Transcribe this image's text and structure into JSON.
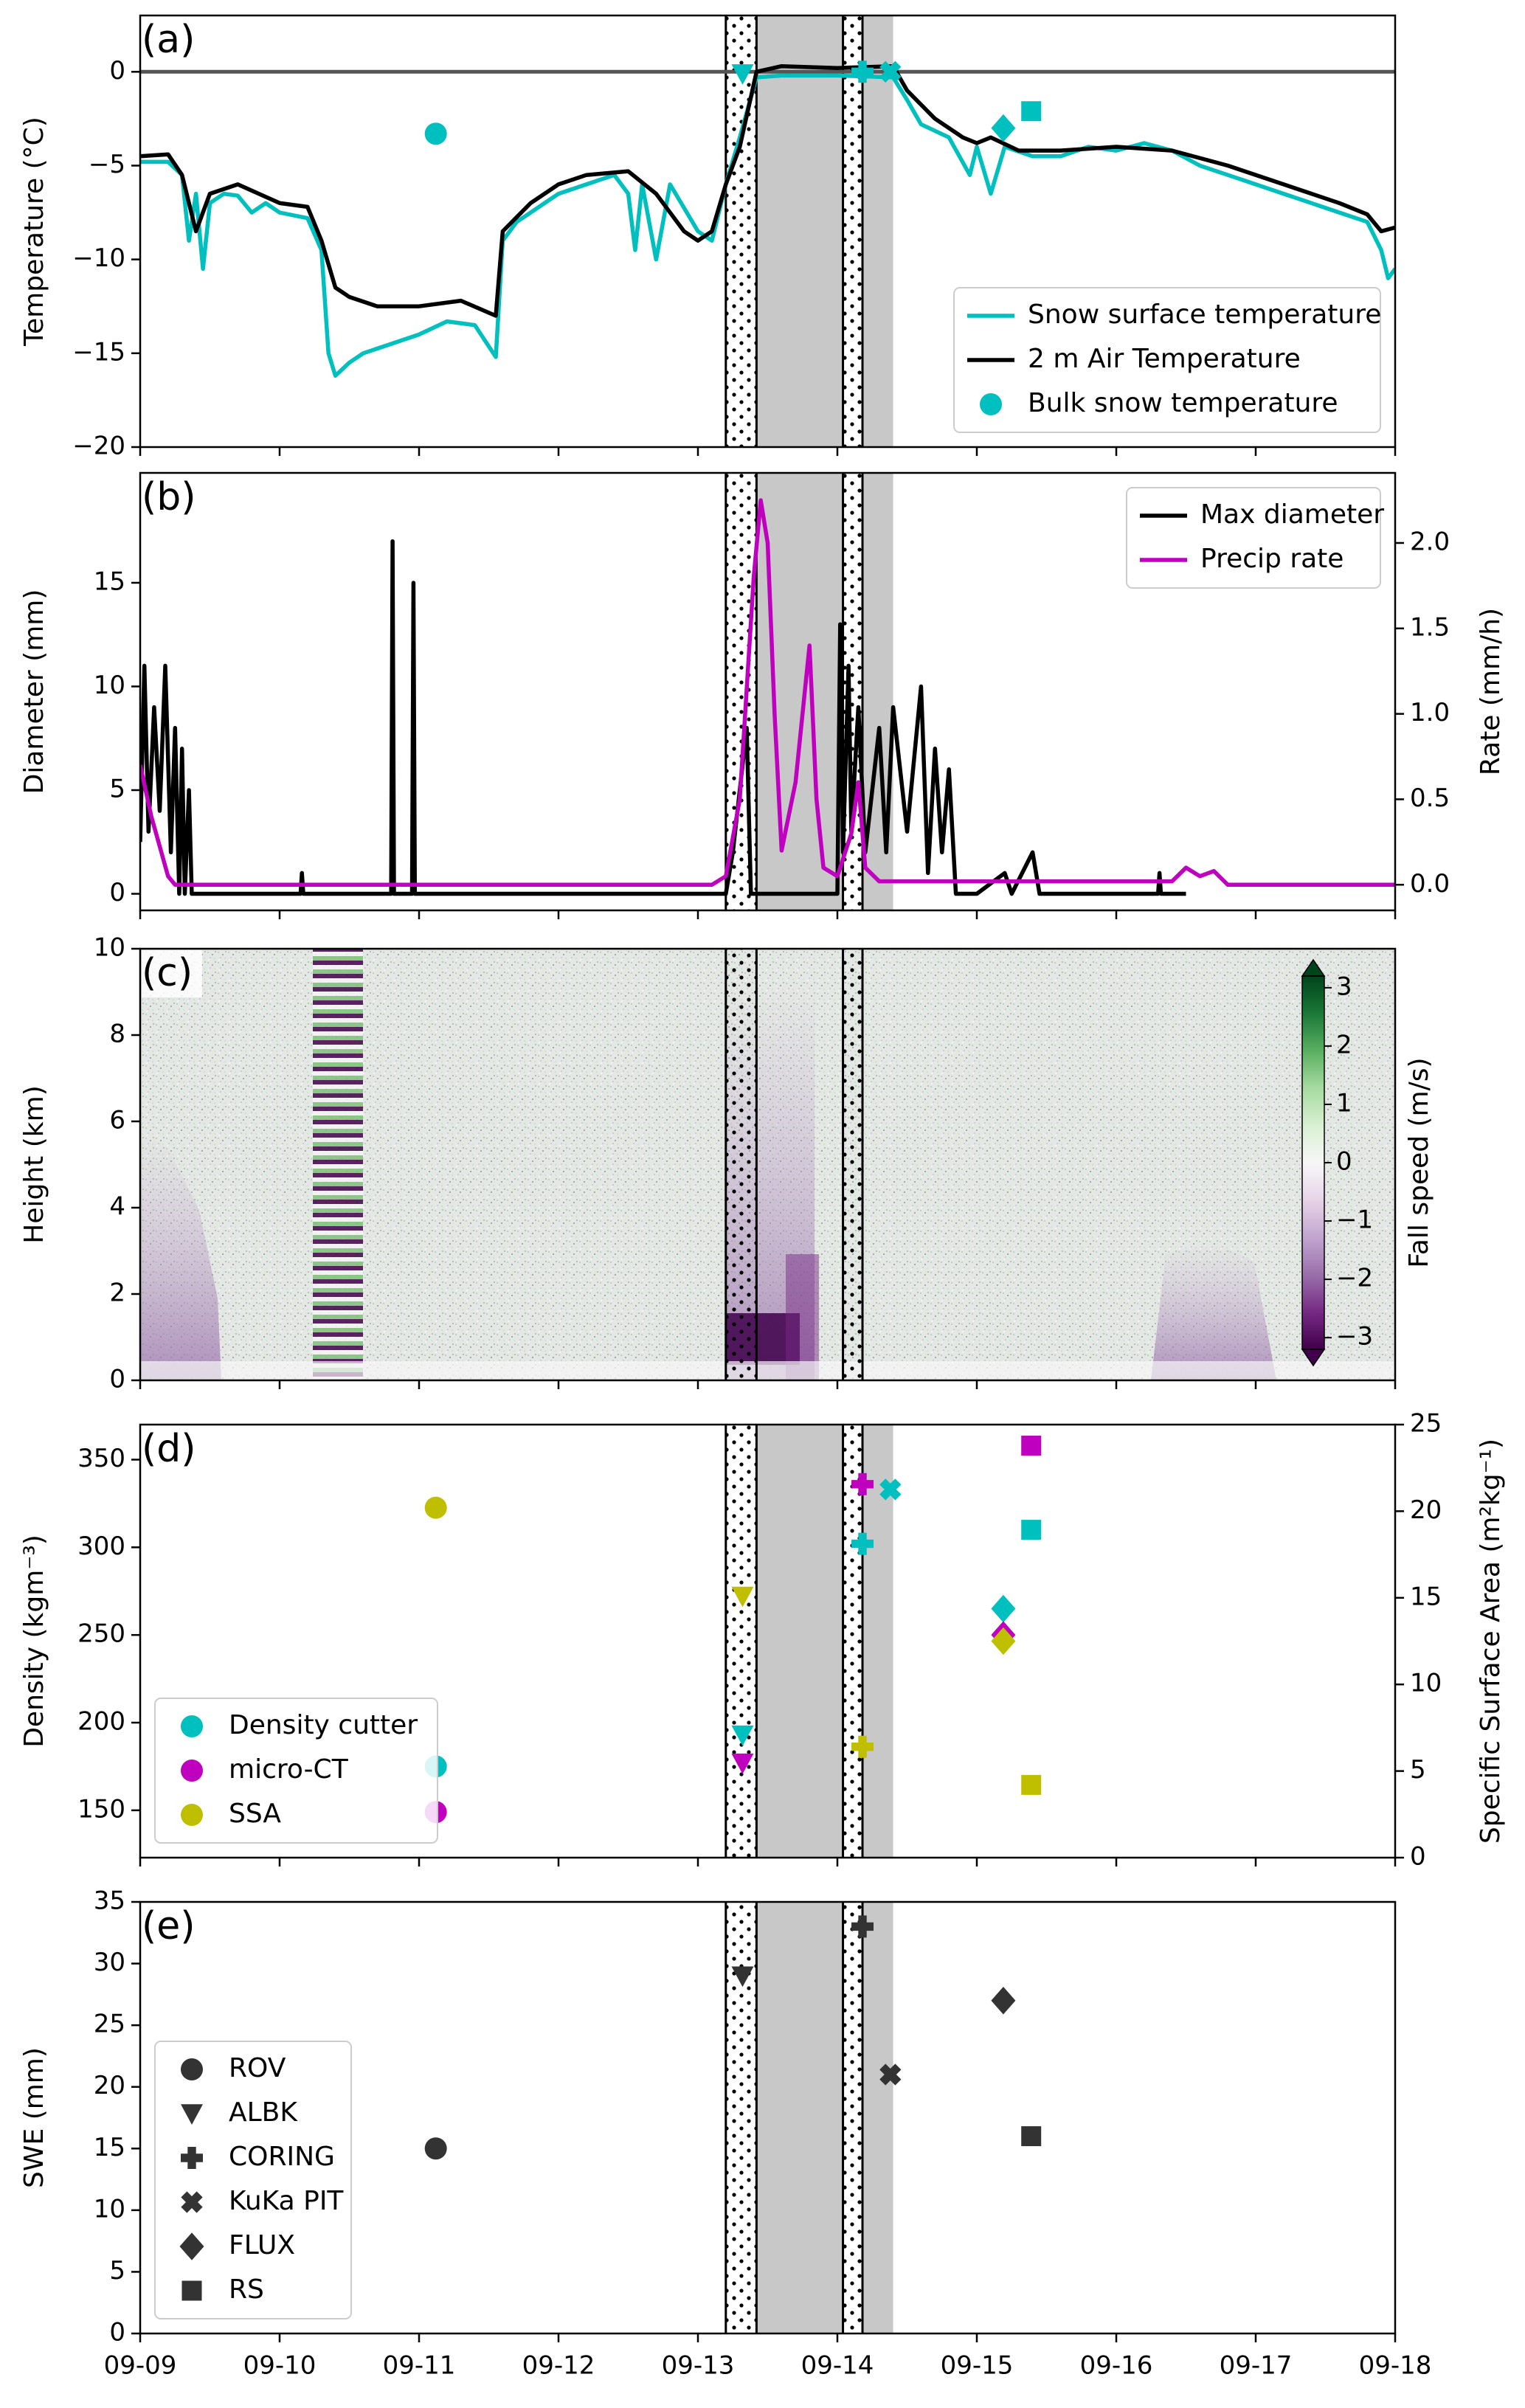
{
  "chart_data": [
    {
      "type": "line",
      "label": "(a)",
      "ylabel": "Temperature (°C)",
      "xlim": [
        0,
        9
      ],
      "xticks": [
        0,
        1,
        2,
        3,
        4,
        5,
        6,
        7,
        8,
        9
      ],
      "ylim": [
        -20,
        3
      ],
      "yticks": [
        {
          "value": -20,
          "label": "−20"
        },
        {
          "value": -15,
          "label": "−15"
        },
        {
          "value": -10,
          "label": "−10"
        },
        {
          "value": -5,
          "label": "−5"
        },
        0
      ],
      "hline": 0,
      "legend": "lower right",
      "spans": [
        {
          "start": 4.42,
          "end": 5.4,
          "fill": "gray"
        },
        {
          "start": 4.2,
          "end": 4.42,
          "fill": "dotted"
        },
        {
          "start": 5.04,
          "end": 5.18,
          "fill": "dotted"
        }
      ],
      "series": [
        {
          "name": "Snow surface temperature",
          "color": "#00bfbf",
          "x": [
            0,
            0.2,
            0.3,
            0.35,
            0.4,
            0.45,
            0.5,
            0.6,
            0.7,
            0.8,
            0.9,
            1.0,
            1.2,
            1.3,
            1.35,
            1.4,
            1.5,
            1.6,
            1.8,
            2.0,
            2.2,
            2.4,
            2.55,
            2.6,
            2.7,
            2.8,
            2.9,
            3.0,
            3.2,
            3.4,
            3.5,
            3.55,
            3.6,
            3.7,
            3.8,
            4.0,
            4.1,
            4.2,
            4.3,
            4.42,
            4.6,
            5.0,
            5.4,
            5.5,
            5.6,
            5.8,
            5.95,
            6.0,
            6.1,
            6.2,
            6.4,
            6.6,
            6.8,
            7.0,
            7.2,
            7.4,
            7.6,
            7.8,
            8.0,
            8.2,
            8.4,
            8.6,
            8.8,
            8.9,
            8.95,
            9.0
          ],
          "values": [
            -4.8,
            -4.8,
            -5.5,
            -9,
            -6.5,
            -10.5,
            -7,
            -6.5,
            -6.6,
            -7.5,
            -7,
            -7.5,
            -7.8,
            -9.5,
            -15,
            -16.2,
            -15.5,
            -15,
            -14.5,
            -14,
            -13.3,
            -13.5,
            -15.2,
            -9,
            -8,
            -7.5,
            -7,
            -6.5,
            -6,
            -5.5,
            -6.5,
            -9.5,
            -6,
            -10,
            -6,
            -8.5,
            -9,
            -6,
            -3.5,
            -0.3,
            -0.2,
            -0.2,
            -0.3,
            -1.5,
            -2.8,
            -3.5,
            -5.5,
            -4,
            -6.5,
            -4,
            -4.5,
            -4.5,
            -4,
            -4.2,
            -3.8,
            -4.2,
            -5,
            -5.5,
            -6,
            -6.5,
            -7,
            -7.5,
            -8,
            -9.5,
            -11,
            -10.5
          ]
        },
        {
          "name": "2 m Air Temperature",
          "color": "#000000",
          "x": [
            0,
            0.2,
            0.3,
            0.4,
            0.5,
            0.7,
            1.0,
            1.2,
            1.3,
            1.4,
            1.5,
            1.7,
            2.0,
            2.3,
            2.55,
            2.6,
            2.8,
            3.0,
            3.2,
            3.5,
            3.7,
            3.9,
            4.0,
            4.1,
            4.2,
            4.3,
            4.42,
            4.6,
            5.0,
            5.4,
            5.5,
            5.7,
            5.9,
            6.0,
            6.1,
            6.3,
            6.6,
            7.0,
            7.4,
            7.8,
            8.2,
            8.6,
            8.8,
            8.9,
            9.0
          ],
          "values": [
            -4.5,
            -4.4,
            -5.5,
            -8.5,
            -6.5,
            -6,
            -7,
            -7.2,
            -9,
            -11.5,
            -12,
            -12.5,
            -12.5,
            -12.2,
            -13,
            -8.5,
            -7,
            -6,
            -5.5,
            -5.3,
            -6.5,
            -8.5,
            -9,
            -8.5,
            -6,
            -4,
            0,
            0.3,
            0.2,
            0.3,
            -1,
            -2.5,
            -3.5,
            -3.8,
            -3.5,
            -4.2,
            -4.2,
            -4,
            -4.2,
            -5,
            -6,
            -7,
            -7.6,
            -8.5,
            -8.3
          ]
        },
        {
          "name": "Bulk snow temperature",
          "type": "scatter",
          "color": "#00bfbf",
          "x": [
            2.12,
            4.32,
            5.18,
            5.38,
            6.19,
            6.39
          ],
          "values": [
            -3.3,
            -0.1,
            0,
            0,
            -3.0,
            -2.1
          ],
          "markers": [
            "circle",
            "triangle",
            "plus",
            "x",
            "diamond",
            "square"
          ]
        }
      ]
    },
    {
      "type": "line",
      "label": "(b)",
      "ylabel": "Diameter (mm)",
      "y2label": "Rate (mm/h)",
      "xlim": [
        0,
        9
      ],
      "xticks": [
        0,
        1,
        2,
        3,
        4,
        5,
        6,
        7,
        8,
        9
      ],
      "ylim": [
        -0.8,
        20.3
      ],
      "yticks": [
        0,
        5,
        10,
        15
      ],
      "y2lim": [
        -0.15,
        2.41
      ],
      "y2ticks": [
        {
          "value": 0,
          "label": "0.0"
        },
        {
          "value": 0.5,
          "label": "0.5"
        },
        {
          "value": 1,
          "label": "1.0"
        },
        {
          "value": 1.5,
          "label": "1.5"
        },
        {
          "value": 2,
          "label": "2.0"
        }
      ],
      "legend": "upper right",
      "spans": [
        {
          "start": 4.42,
          "end": 5.4,
          "fill": "gray"
        },
        {
          "start": 4.2,
          "end": 4.42,
          "fill": "dotted"
        },
        {
          "start": 5.04,
          "end": 5.18,
          "fill": "dotted"
        }
      ],
      "series": [
        {
          "name": "Max diameter",
          "color": "#000000",
          "x": [
            0,
            0.03,
            0.06,
            0.1,
            0.14,
            0.18,
            0.22,
            0.25,
            0.28,
            0.3,
            0.32,
            0.35,
            0.37,
            1.15,
            1.16,
            1.17,
            1.8,
            1.81,
            1.82,
            1.95,
            1.96,
            1.97,
            4.2,
            4.25,
            4.3,
            4.35,
            4.38,
            5.0,
            5.02,
            5.04,
            5.08,
            5.1,
            5.15,
            5.2,
            5.3,
            5.35,
            5.4,
            5.5,
            5.6,
            5.65,
            5.7,
            5.75,
            5.8,
            5.85,
            6.0,
            6.2,
            6.25,
            6.4,
            6.45,
            7.3,
            7.31,
            7.32,
            7.5
          ],
          "values": [
            2.5,
            11,
            3,
            9,
            4,
            11,
            2,
            8,
            0,
            7,
            0,
            5,
            0,
            0,
            1,
            0,
            0,
            17,
            0,
            0,
            15,
            0,
            0,
            2,
            5,
            8,
            0,
            0,
            13,
            2,
            11,
            3,
            9,
            2,
            8,
            2,
            9,
            3,
            10,
            1,
            7,
            2,
            6,
            0,
            0,
            1,
            0,
            2,
            0,
            0,
            1,
            0,
            0
          ]
        },
        {
          "name": "Precip rate",
          "color": "#bf00bf",
          "axis": "y2",
          "x": [
            0,
            0.08,
            0.2,
            0.25,
            4.1,
            4.2,
            4.3,
            4.4,
            4.45,
            4.5,
            4.55,
            4.6,
            4.7,
            4.8,
            4.85,
            4.9,
            5.0,
            5.1,
            5.15,
            5.2,
            5.3,
            7.4,
            7.5,
            7.6,
            7.7,
            7.8,
            9.0
          ],
          "values": [
            0.7,
            0.4,
            0.05,
            0,
            0,
            0.05,
            0.5,
            1.8,
            2.25,
            2.0,
            1.0,
            0.2,
            0.6,
            1.4,
            0.5,
            0.1,
            0.05,
            0.3,
            0.6,
            0.1,
            0.02,
            0.02,
            0.1,
            0.05,
            0.08,
            0,
            0
          ]
        }
      ]
    },
    {
      "type": "heatmap",
      "label": "(c)",
      "ylabel": "Height (km)",
      "xlim": [
        0,
        9
      ],
      "xticks": [
        0,
        1,
        2,
        3,
        4,
        5,
        6,
        7,
        8,
        9
      ],
      "ylim": [
        0,
        10
      ],
      "yticks": [
        0,
        2,
        4,
        6,
        8,
        10
      ],
      "spans": [
        {
          "start": 4.2,
          "end": 4.42,
          "fill": "dotted"
        },
        {
          "start": 5.04,
          "end": 5.18,
          "fill": "dotted"
        }
      ],
      "colorbar": {
        "label": "Fall speed (m/s)",
        "clim": [
          -3.2,
          3.2
        ],
        "colormap": "PRGn",
        "ticks": [
          {
            "value": -3,
            "label": "−3"
          },
          {
            "value": -2,
            "label": "−2"
          },
          {
            "value": -1,
            "label": "−1"
          },
          0,
          1,
          2,
          3
        ]
      }
    },
    {
      "type": "scatter",
      "label": "(d)",
      "ylabel": "Density (kgm⁻³)",
      "y2label": "Specific Surface Area (m²kg⁻¹)",
      "xlim": [
        0,
        9
      ],
      "xticks": [
        0,
        1,
        2,
        3,
        4,
        5,
        6,
        7,
        8,
        9
      ],
      "ylim": [
        123,
        370
      ],
      "yticks": [
        150,
        200,
        250,
        300,
        350
      ],
      "y2lim": [
        0,
        25
      ],
      "y2ticks": [
        0,
        5,
        10,
        15,
        20,
        25
      ],
      "legend": "lower left",
      "spans": [
        {
          "start": 4.42,
          "end": 5.4,
          "fill": "gray"
        },
        {
          "start": 4.2,
          "end": 4.42,
          "fill": "dotted"
        },
        {
          "start": 5.04,
          "end": 5.18,
          "fill": "dotted"
        }
      ],
      "series": [
        {
          "name": "Density cutter",
          "color": "#00bfbf",
          "x": [
            2.12,
            4.32,
            5.18,
            5.38,
            6.19,
            6.39
          ],
          "values": [
            175,
            193,
            302,
            333,
            265,
            310
          ],
          "markers": [
            "circle",
            "triangle",
            "plus",
            "x",
            "diamond",
            "square"
          ]
        },
        {
          "name": "micro-CT",
          "color": "#bf00bf",
          "x": [
            2.12,
            4.32,
            5.18,
            6.19,
            6.39
          ],
          "values": [
            149,
            177,
            336,
            250,
            358
          ],
          "markers": [
            "circle",
            "triangle",
            "plus",
            "diamond",
            "square"
          ]
        },
        {
          "name": "SSA",
          "color": "#bfbf00",
          "axis": "y2",
          "x": [
            2.12,
            4.32,
            5.18,
            6.19,
            6.39
          ],
          "values": [
            20.2,
            15.1,
            6.4,
            12.5,
            4.2
          ],
          "markers": [
            "circle",
            "triangle",
            "plus",
            "diamond",
            "square"
          ]
        }
      ]
    },
    {
      "type": "scatter",
      "label": "(e)",
      "ylabel": "SWE (mm)",
      "xlim": [
        0,
        9
      ],
      "xticks": [
        {
          "value": 0,
          "label": "09-09"
        },
        {
          "value": 1,
          "label": "09-10"
        },
        {
          "value": 2,
          "label": "09-11"
        },
        {
          "value": 3,
          "label": "09-12"
        },
        {
          "value": 4,
          "label": "09-13"
        },
        {
          "value": 5,
          "label": "09-14"
        },
        {
          "value": 6,
          "label": "09-15"
        },
        {
          "value": 7,
          "label": "09-16"
        },
        {
          "value": 8,
          "label": "09-17"
        },
        {
          "value": 9,
          "label": "09-18"
        }
      ],
      "ylim": [
        0,
        35
      ],
      "yticks": [
        0,
        5,
        10,
        15,
        20,
        25,
        30,
        35
      ],
      "legend": "lower left",
      "spans": [
        {
          "start": 4.42,
          "end": 5.4,
          "fill": "gray"
        },
        {
          "start": 4.2,
          "end": 4.42,
          "fill": "dotted"
        },
        {
          "start": 5.04,
          "end": 5.18,
          "fill": "dotted"
        }
      ],
      "series": [
        {
          "name": "ROV",
          "color": "#333333",
          "marker": "circle",
          "x": [
            2.12
          ],
          "values": [
            15
          ]
        },
        {
          "name": "ALBK",
          "color": "#333333",
          "marker": "triangle",
          "x": [
            4.32
          ],
          "values": [
            29
          ]
        },
        {
          "name": "CORING",
          "color": "#333333",
          "marker": "plus",
          "x": [
            5.18
          ],
          "values": [
            33
          ]
        },
        {
          "name": "KuKa PIT",
          "color": "#333333",
          "marker": "x",
          "x": [
            5.38
          ],
          "values": [
            21
          ]
        },
        {
          "name": "FLUX",
          "color": "#333333",
          "marker": "diamond",
          "x": [
            6.19
          ],
          "values": [
            27
          ]
        },
        {
          "name": "RS",
          "color": "#333333",
          "marker": "square",
          "x": [
            6.39
          ],
          "values": [
            16
          ]
        }
      ]
    }
  ]
}
